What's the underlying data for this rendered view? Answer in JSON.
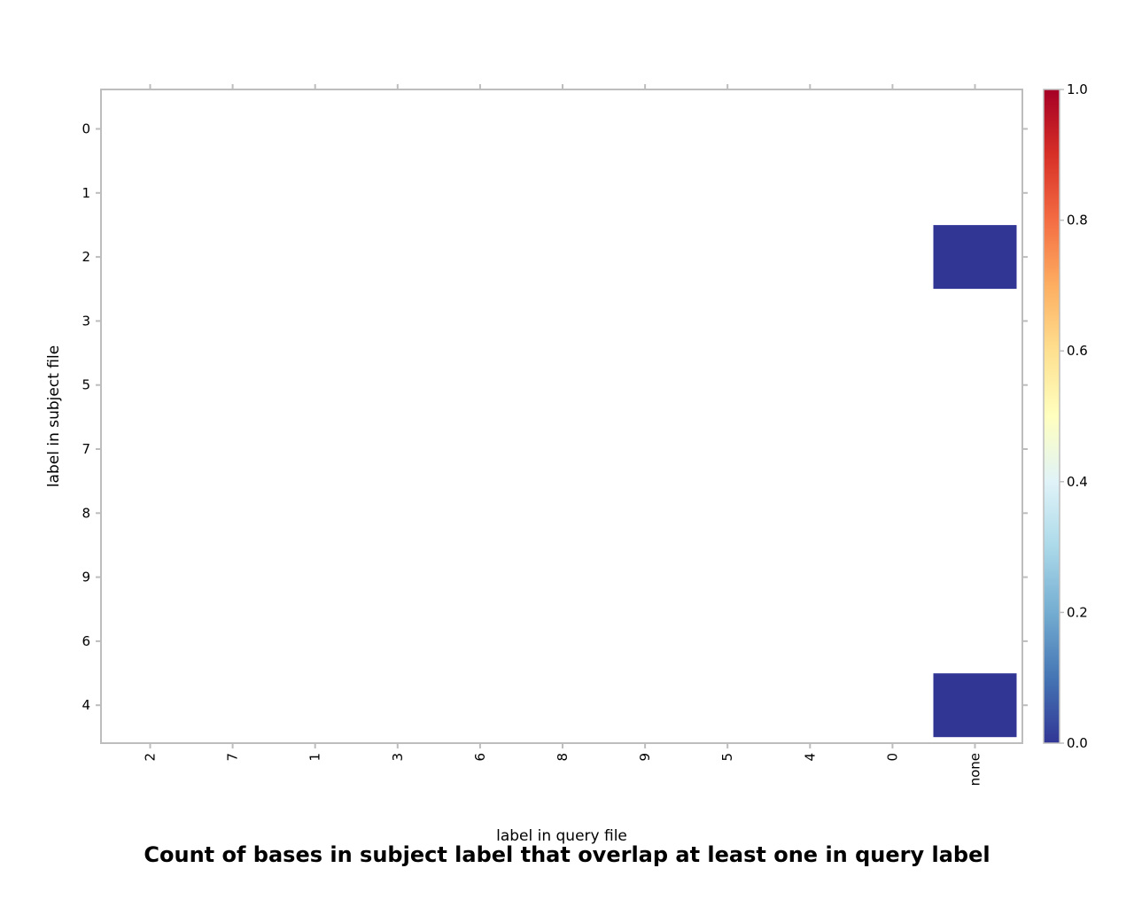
{
  "chart_data": {
    "type": "heatmap",
    "title": "Count of bases in subject label that overlap at least one in query label",
    "xlabel": "label in query file",
    "ylabel": "label in subject file",
    "x_categories": [
      "2",
      "7",
      "1",
      "3",
      "6",
      "8",
      "9",
      "5",
      "4",
      "0",
      "none"
    ],
    "y_categories": [
      "0",
      "1",
      "2",
      "3",
      "5",
      "7",
      "8",
      "9",
      "6",
      "4"
    ],
    "cells": [
      {
        "x": "none",
        "y": "2",
        "value": 0.0
      },
      {
        "x": "none",
        "y": "4",
        "value": 0.0
      }
    ],
    "colorbar": {
      "range": [
        0.0,
        1.0
      ],
      "ticks": [
        "0.0",
        "0.2",
        "0.4",
        "0.6",
        "0.8",
        "1.0"
      ],
      "colors": [
        "#313695",
        "#4575b4",
        "#74add1",
        "#abd9e9",
        "#e0f3f8",
        "#ffffbf",
        "#fee090",
        "#fdae61",
        "#f46d43",
        "#d73027",
        "#a50026"
      ]
    },
    "grid": false
  }
}
